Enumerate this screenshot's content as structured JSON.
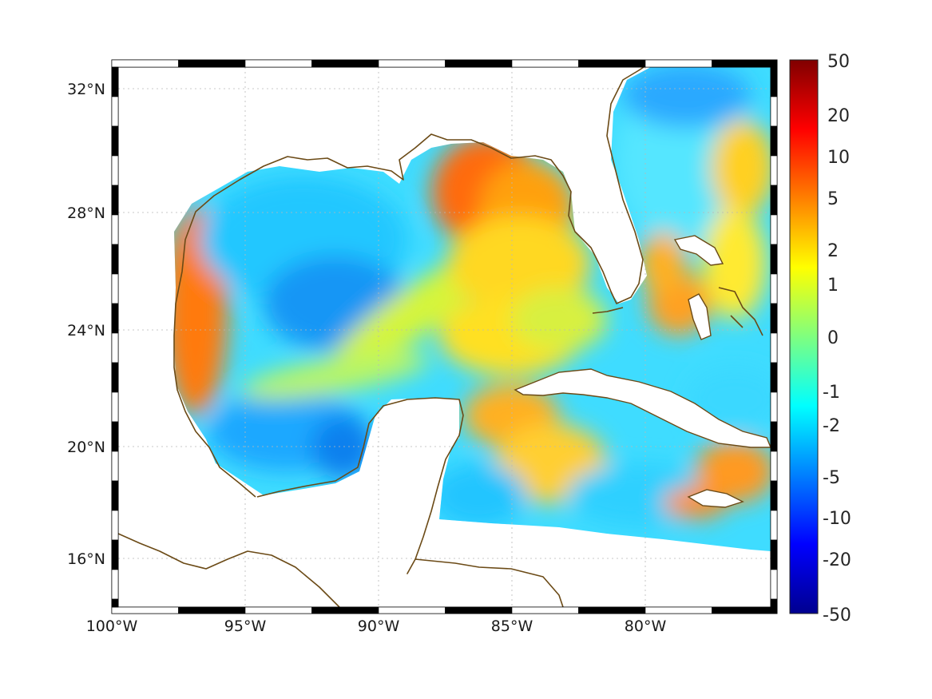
{
  "map": {
    "lon_labels": [
      "100°W",
      "95°W",
      "90°W",
      "85°W",
      "80°W"
    ],
    "lat_labels": [
      "32°N",
      "28°N",
      "24°N",
      "20°N",
      "16°N"
    ],
    "lon_range": [
      -100,
      -75
    ],
    "lat_range": [
      14.2,
      33
    ],
    "coastline_color": "#6b4a16",
    "grid": true
  },
  "colorbar": {
    "colormap": "jet",
    "tick_labels": [
      "50",
      "20",
      "10",
      "5",
      "2",
      "1",
      "0",
      "-1",
      "-2",
      "-5",
      "-10",
      "-20",
      "-50"
    ]
  },
  "colors": {
    "jet_low": "#00008f",
    "jet_mid": "#7fff7f",
    "jet_high": "#800000"
  }
}
